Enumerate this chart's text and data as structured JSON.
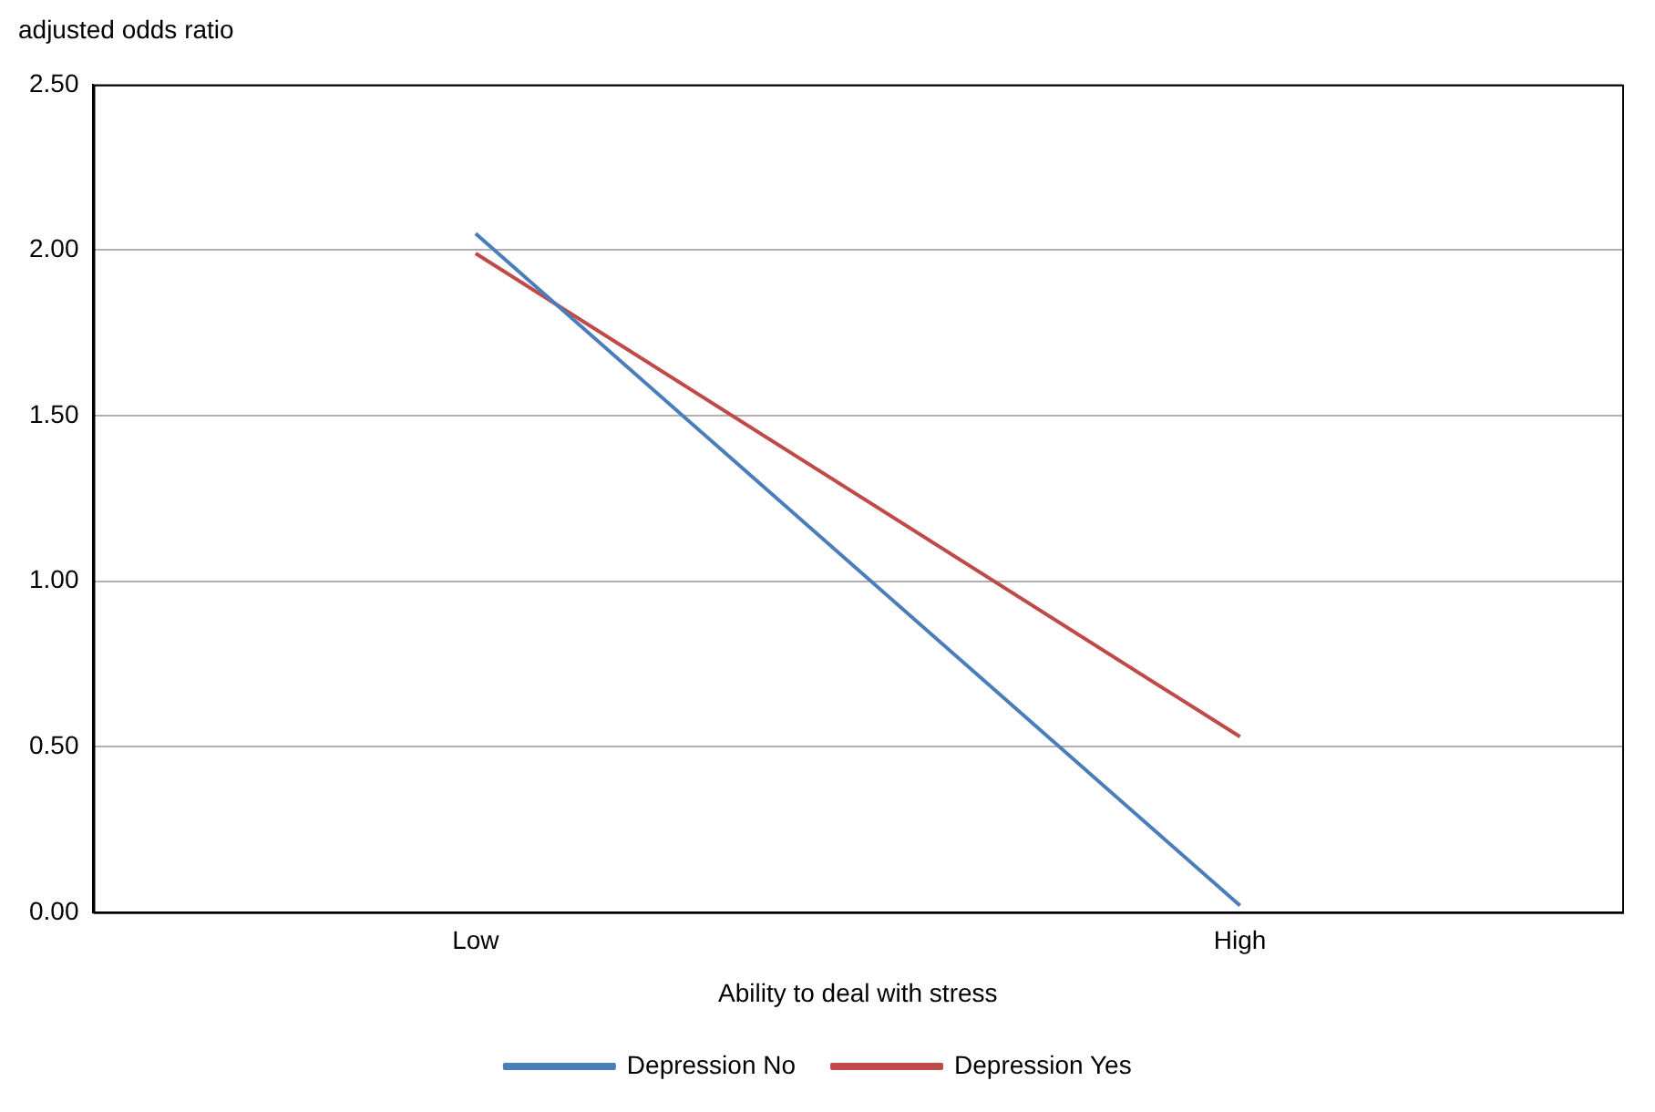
{
  "chart_data": {
    "type": "line",
    "ylabel": "adjusted odds ratio",
    "xlabel": "Ability to deal with stress",
    "categories": [
      "Low",
      "High"
    ],
    "series": [
      {
        "name": "Depression No",
        "color": "#4a7ebb",
        "values": [
          2.05,
          0.02
        ]
      },
      {
        "name": "Depression Yes",
        "color": "#be4b48",
        "values": [
          1.99,
          0.53
        ]
      }
    ],
    "ylim": [
      0,
      2.5
    ],
    "yticks": [
      {
        "value": 0,
        "label": "0.00"
      },
      {
        "value": 0.5,
        "label": "0.50"
      },
      {
        "value": 1,
        "label": "1.00"
      },
      {
        "value": 1.5,
        "label": "1.50"
      },
      {
        "value": 2,
        "label": "2.00"
      },
      {
        "value": 2.5,
        "label": "2.50"
      }
    ],
    "grid": "y",
    "legend": "bottom",
    "marker": "none",
    "line_style": "solid"
  }
}
